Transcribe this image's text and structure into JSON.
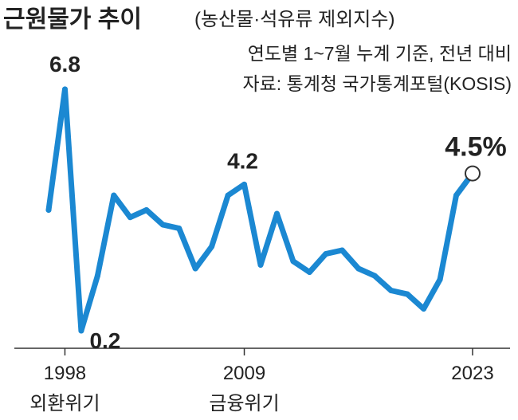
{
  "chart_data": {
    "type": "line",
    "title": "근원물가 추이",
    "subtitle": "(농산물·석유류 제외지수)",
    "notes": [
      "연도별 1~7월 누계 기준, 전년 대비",
      "자료: 통계청 국가통계포털(KOSIS)"
    ],
    "series": [
      {
        "x": [
          1997,
          1998,
          1999,
          2000,
          2001,
          2002,
          2003,
          2004,
          2005,
          2006,
          2007,
          2008,
          2009,
          2010,
          2011,
          2012,
          2013,
          2014,
          2015,
          2016,
          2017,
          2018,
          2019,
          2020,
          2021,
          2022,
          2023
        ],
        "values": [
          3.5,
          6.8,
          0.2,
          1.7,
          3.9,
          3.3,
          3.5,
          3.1,
          3.0,
          1.9,
          2.5,
          3.9,
          4.2,
          2.0,
          3.4,
          2.1,
          1.8,
          2.3,
          2.4,
          1.9,
          1.7,
          1.3,
          1.2,
          0.8,
          1.6,
          3.9,
          4.5
        ],
        "color": "#1b88d2"
      }
    ],
    "xticks": [
      "1998",
      "2009",
      "2023"
    ],
    "events": [
      {
        "x": 1998,
        "label": "외환위기"
      },
      {
        "x": 2009,
        "label": "금융위기"
      }
    ],
    "data_labels": [
      {
        "x": 1998,
        "text": "6.8"
      },
      {
        "x": 1999,
        "text": "0.2"
      },
      {
        "x": 2009,
        "text": "4.2"
      },
      {
        "x": 2023,
        "text": "4.5%"
      }
    ],
    "xlim": [
      1997,
      2023
    ],
    "grid": false,
    "legend": "none"
  }
}
